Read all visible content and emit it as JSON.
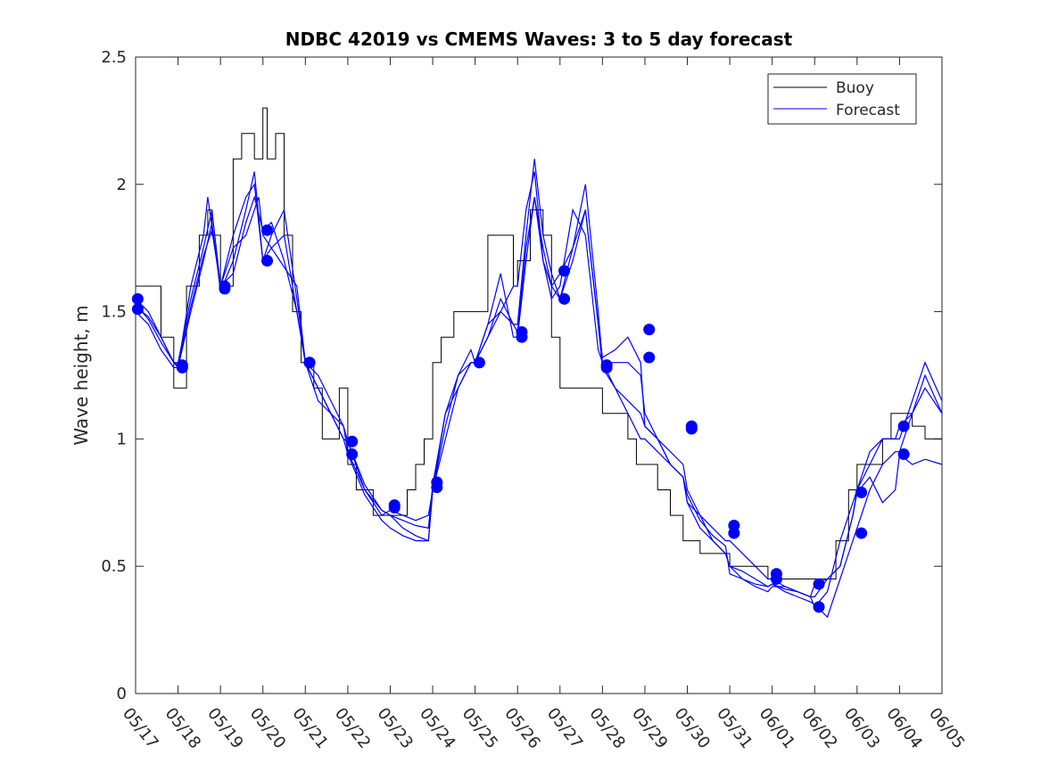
{
  "chart_data": {
    "type": "line",
    "title": "NDBC 42019 vs CMEMS Waves: 3 to 5 day forecast",
    "xlabel": "",
    "ylabel": "Wave height, m",
    "xlim": [
      "05/17",
      "06/05"
    ],
    "ylim": [
      0,
      2.5
    ],
    "x_ticks": [
      "05/17",
      "05/18",
      "05/19",
      "05/20",
      "05/21",
      "05/22",
      "05/23",
      "05/24",
      "05/25",
      "05/26",
      "05/27",
      "05/28",
      "05/29",
      "05/30",
      "05/31",
      "06/01",
      "06/02",
      "06/03",
      "06/04",
      "06/05"
    ],
    "y_ticks": [
      "0",
      "0.5",
      "1",
      "1.5",
      "2",
      "2.5"
    ],
    "grid": false,
    "legend": {
      "position": "top-right",
      "entries": [
        "Buoy",
        "Forecast"
      ]
    },
    "colors": {
      "buoy": "#000000",
      "forecast": "#0000ff",
      "markers": "#0000ff"
    },
    "series": [
      {
        "name": "Buoy",
        "x": [
          0.0,
          0.3,
          0.6,
          0.9,
          1.0,
          1.2,
          1.5,
          1.7,
          1.8,
          2.0,
          2.3,
          2.5,
          2.8,
          3.0,
          3.1,
          3.3,
          3.5,
          3.7,
          3.9,
          4.0,
          4.2,
          4.4,
          4.6,
          4.8,
          5.0,
          5.2,
          5.4,
          5.6,
          5.8,
          6.0,
          6.2,
          6.4,
          6.6,
          6.8,
          7.0,
          7.2,
          7.5,
          7.8,
          8.0,
          8.3,
          8.6,
          8.9,
          9.0,
          9.3,
          9.6,
          9.8,
          10.0,
          10.3,
          10.5,
          10.8,
          11.0,
          11.3,
          11.6,
          11.8,
          12.0,
          12.3,
          12.6,
          12.9,
          13.0,
          13.3,
          13.6,
          13.9,
          14.0,
          14.3,
          14.6,
          14.9,
          15.0,
          15.3,
          15.6,
          15.9,
          16.0,
          16.3,
          16.5,
          16.8,
          17.0,
          17.3,
          17.6,
          17.8,
          18.0,
          18.3,
          18.6,
          19.0
        ],
        "values": [
          1.6,
          1.6,
          1.4,
          1.2,
          1.2,
          1.6,
          1.8,
          1.9,
          1.8,
          1.6,
          2.1,
          2.2,
          2.1,
          2.3,
          2.1,
          2.2,
          1.8,
          1.5,
          1.3,
          1.3,
          1.2,
          1.0,
          1.0,
          1.2,
          0.9,
          0.8,
          0.8,
          0.7,
          0.7,
          0.7,
          0.7,
          0.8,
          0.9,
          1.0,
          1.3,
          1.4,
          1.5,
          1.5,
          1.5,
          1.8,
          1.8,
          1.6,
          1.7,
          1.9,
          1.8,
          1.4,
          1.2,
          1.2,
          1.2,
          1.2,
          1.1,
          1.1,
          1.0,
          0.9,
          0.9,
          0.8,
          0.7,
          0.6,
          0.6,
          0.55,
          0.55,
          0.55,
          0.5,
          0.5,
          0.5,
          0.45,
          0.45,
          0.45,
          0.45,
          0.45,
          0.45,
          0.45,
          0.6,
          0.8,
          0.9,
          0.9,
          1.0,
          1.1,
          1.1,
          1.05,
          1.0,
          1.0
        ]
      },
      {
        "name": "Forecast",
        "runs": [
          {
            "x": [
              0.0,
              0.3,
              0.6,
              0.9,
              1.0,
              1.3,
              1.6,
              1.7,
              2.0,
              2.3,
              2.6,
              2.9,
              3.0,
              3.2,
              3.4,
              3.8,
              4.0,
              4.3,
              4.6,
              4.9,
              5.0,
              5.4,
              5.8,
              6.0,
              6.3,
              6.6,
              6.9,
              7.0,
              7.3,
              7.6,
              7.9,
              8.0,
              8.3,
              8.6,
              8.9,
              9.0,
              9.2,
              9.4,
              9.6,
              9.8,
              10.0,
              10.3,
              10.6,
              10.9,
              11.0,
              11.3,
              11.6,
              11.9,
              12.0,
              12.3,
              12.6,
              12.9,
              13.0,
              13.3,
              13.6,
              13.9,
              14.0,
              14.3,
              14.6,
              14.9,
              15.0,
              15.3,
              15.6,
              15.9,
              16.0,
              16.3,
              16.6,
              16.9,
              17.0,
              17.3,
              17.6,
              17.9,
              18.0,
              18.3,
              18.6,
              19.0
            ],
            "values": [
              1.55,
              1.5,
              1.4,
              1.3,
              1.28,
              1.6,
              1.8,
              1.95,
              1.6,
              1.75,
              1.8,
              1.95,
              1.8,
              1.75,
              1.7,
              1.6,
              1.3,
              1.2,
              1.1,
              1.0,
              0.99,
              0.8,
              0.7,
              0.72,
              0.7,
              0.68,
              0.7,
              0.8,
              1.1,
              1.2,
              1.3,
              1.3,
              1.45,
              1.5,
              1.6,
              1.6,
              1.9,
              2.05,
              1.7,
              1.55,
              1.6,
              1.9,
              1.8,
              1.35,
              1.3,
              1.3,
              1.3,
              1.25,
              1.1,
              1.0,
              0.95,
              0.9,
              0.8,
              0.7,
              0.65,
              0.6,
              0.6,
              0.55,
              0.5,
              0.45,
              0.45,
              0.42,
              0.4,
              0.38,
              0.38,
              0.45,
              0.5,
              0.7,
              0.8,
              0.9,
              1.0,
              1.0,
              1.05,
              1.1,
              1.2,
              1.1
            ]
          },
          {
            "x": [
              0.0,
              0.3,
              0.6,
              0.9,
              1.0,
              1.3,
              1.6,
              1.8,
              2.0,
              2.3,
              2.6,
              2.8,
              3.0,
              3.2,
              3.5,
              3.8,
              4.0,
              4.3,
              4.6,
              4.9,
              5.0,
              5.4,
              5.8,
              6.0,
              6.3,
              6.6,
              6.9,
              7.0,
              7.3,
              7.6,
              7.9,
              8.0,
              8.3,
              8.6,
              8.9,
              9.0,
              9.2,
              9.4,
              9.6,
              9.8,
              10.0,
              10.3,
              10.6,
              10.9,
              11.0,
              11.3,
              11.6,
              11.9,
              12.0,
              12.3,
              12.6,
              12.9,
              13.0,
              13.3,
              13.6,
              13.9,
              14.0,
              14.3,
              14.6,
              14.9,
              15.0,
              15.3,
              15.6,
              15.9,
              16.0,
              16.3,
              16.6,
              16.9,
              17.0,
              17.3,
              17.6,
              17.9,
              18.0,
              18.3,
              18.6,
              19.0
            ],
            "values": [
              1.52,
              1.48,
              1.4,
              1.3,
              1.3,
              1.55,
              1.75,
              1.9,
              1.6,
              1.8,
              1.95,
              2.0,
              1.7,
              1.8,
              1.9,
              1.55,
              1.3,
              1.15,
              1.1,
              1.05,
              0.95,
              0.8,
              0.72,
              0.7,
              0.65,
              0.62,
              0.6,
              0.8,
              1.0,
              1.2,
              1.3,
              1.3,
              1.4,
              1.55,
              1.45,
              1.45,
              1.8,
              2.1,
              1.8,
              1.65,
              1.55,
              1.75,
              2.0,
              1.5,
              1.3,
              1.2,
              1.15,
              1.1,
              1.05,
              1.0,
              0.9,
              0.85,
              0.75,
              0.65,
              0.6,
              0.55,
              0.5,
              0.48,
              0.45,
              0.42,
              0.43,
              0.4,
              0.38,
              0.36,
              0.35,
              0.3,
              0.45,
              0.6,
              0.65,
              0.8,
              0.9,
              0.95,
              0.95,
              1.1,
              1.25,
              1.1
            ]
          },
          {
            "x": [
              0.0,
              0.3,
              0.6,
              0.9,
              1.0,
              1.3,
              1.6,
              1.8,
              2.0,
              2.3,
              2.6,
              2.8,
              3.0,
              3.2,
              3.5,
              3.8,
              4.0,
              4.3,
              4.6,
              4.9,
              5.0,
              5.4,
              5.8,
              6.0,
              6.3,
              6.6,
              6.9,
              7.0,
              7.3,
              7.6,
              7.9,
              8.0,
              8.3,
              8.6,
              8.9,
              9.0,
              9.2,
              9.4,
              9.6,
              9.8,
              10.0,
              10.3,
              10.6,
              10.9,
              11.0,
              11.3,
              11.6,
              11.9,
              12.0,
              12.3,
              12.6,
              12.9,
              13.0,
              13.3,
              13.6,
              13.9,
              14.0,
              14.3,
              14.6,
              14.9,
              15.0,
              15.3,
              15.6,
              15.9,
              16.0,
              16.3,
              16.6,
              16.9,
              17.0,
              17.3,
              17.6,
              17.9,
              18.0,
              18.3,
              18.6,
              19.0
            ],
            "values": [
              1.5,
              1.45,
              1.35,
              1.28,
              1.28,
              1.5,
              1.7,
              1.85,
              1.58,
              1.7,
              1.9,
              2.05,
              1.7,
              1.75,
              1.8,
              1.5,
              1.3,
              1.2,
              1.1,
              1.0,
              0.94,
              0.78,
              0.68,
              0.65,
              0.62,
              0.6,
              0.6,
              0.8,
              1.05,
              1.25,
              1.3,
              1.3,
              1.45,
              1.65,
              1.4,
              1.4,
              1.7,
              1.95,
              1.7,
              1.6,
              1.55,
              1.7,
              1.9,
              1.45,
              1.28,
              1.2,
              1.1,
              1.0,
              1.0,
              0.95,
              0.9,
              0.85,
              0.75,
              0.7,
              0.6,
              0.55,
              0.5,
              0.45,
              0.42,
              0.4,
              0.42,
              0.42,
              0.4,
              0.38,
              0.34,
              0.4,
              0.6,
              0.75,
              0.8,
              0.95,
              1.0,
              1.0,
              1.0,
              1.15,
              1.3,
              1.15
            ]
          },
          {
            "x": [
              0.0,
              0.3,
              0.6,
              0.9,
              1.0,
              1.3,
              1.6,
              1.8,
              2.0,
              2.3,
              2.6,
              2.8,
              3.0,
              3.2,
              3.5,
              3.8,
              4.0,
              4.3,
              4.6,
              4.9,
              5.0,
              5.4,
              5.8,
              6.0,
              6.3,
              6.6,
              6.9,
              7.0,
              7.3,
              7.6,
              7.9,
              8.0,
              8.3,
              8.6,
              8.9,
              9.0,
              9.2,
              9.4,
              9.6,
              9.8,
              10.0,
              10.3,
              10.6,
              10.9,
              11.0,
              11.3,
              11.6,
              11.9,
              12.0,
              12.3,
              12.6,
              12.9,
              13.0,
              13.3,
              13.6,
              13.9,
              14.0,
              14.3,
              14.6,
              14.9,
              15.0,
              15.3,
              15.6,
              15.9,
              16.0,
              16.3,
              16.6,
              16.9,
              17.0,
              17.3,
              17.6,
              17.9,
              18.0,
              18.3,
              18.6,
              19.0
            ],
            "values": [
              1.53,
              1.47,
              1.38,
              1.3,
              1.29,
              1.52,
              1.72,
              1.82,
              1.6,
              1.65,
              1.85,
              1.95,
              1.82,
              1.85,
              1.7,
              1.5,
              1.3,
              1.25,
              1.15,
              1.05,
              0.99,
              0.82,
              0.72,
              0.7,
              0.68,
              0.66,
              0.65,
              0.82,
              1.1,
              1.25,
              1.35,
              1.3,
              1.4,
              1.5,
              1.45,
              1.42,
              1.75,
              1.95,
              1.75,
              1.6,
              1.65,
              1.75,
              1.9,
              1.45,
              1.32,
              1.35,
              1.4,
              1.3,
              1.05,
              1.0,
              0.9,
              0.85,
              0.78,
              0.68,
              0.62,
              0.58,
              0.47,
              0.45,
              0.43,
              0.42,
              0.43,
              0.41,
              0.4,
              0.38,
              0.43,
              0.45,
              0.5,
              0.7,
              0.79,
              0.85,
              0.75,
              0.8,
              0.94,
              0.9,
              0.92,
              0.9
            ]
          }
        ]
      }
    ],
    "markers": {
      "x": [
        0.05,
        0.05,
        1.1,
        1.1,
        2.1,
        2.1,
        3.1,
        3.1,
        4.1,
        4.1,
        5.1,
        5.1,
        6.1,
        6.1,
        7.1,
        7.1,
        8.1,
        9.1,
        9.1,
        10.1,
        10.1,
        11.1,
        11.1,
        12.1,
        12.1,
        13.1,
        13.1,
        14.1,
        14.1,
        15.1,
        15.1,
        16.1,
        16.1,
        17.1,
        17.1,
        18.1,
        18.1
      ],
      "values": [
        1.55,
        1.51,
        1.29,
        1.28,
        1.6,
        1.59,
        1.82,
        1.7,
        1.3,
        1.3,
        0.99,
        0.94,
        0.74,
        0.73,
        0.83,
        0.81,
        1.3,
        1.42,
        1.4,
        1.66,
        1.55,
        1.29,
        1.28,
        1.43,
        1.32,
        1.05,
        1.04,
        0.66,
        0.63,
        0.47,
        0.45,
        0.43,
        0.34,
        0.79,
        0.63,
        1.05,
        0.94
      ]
    }
  }
}
